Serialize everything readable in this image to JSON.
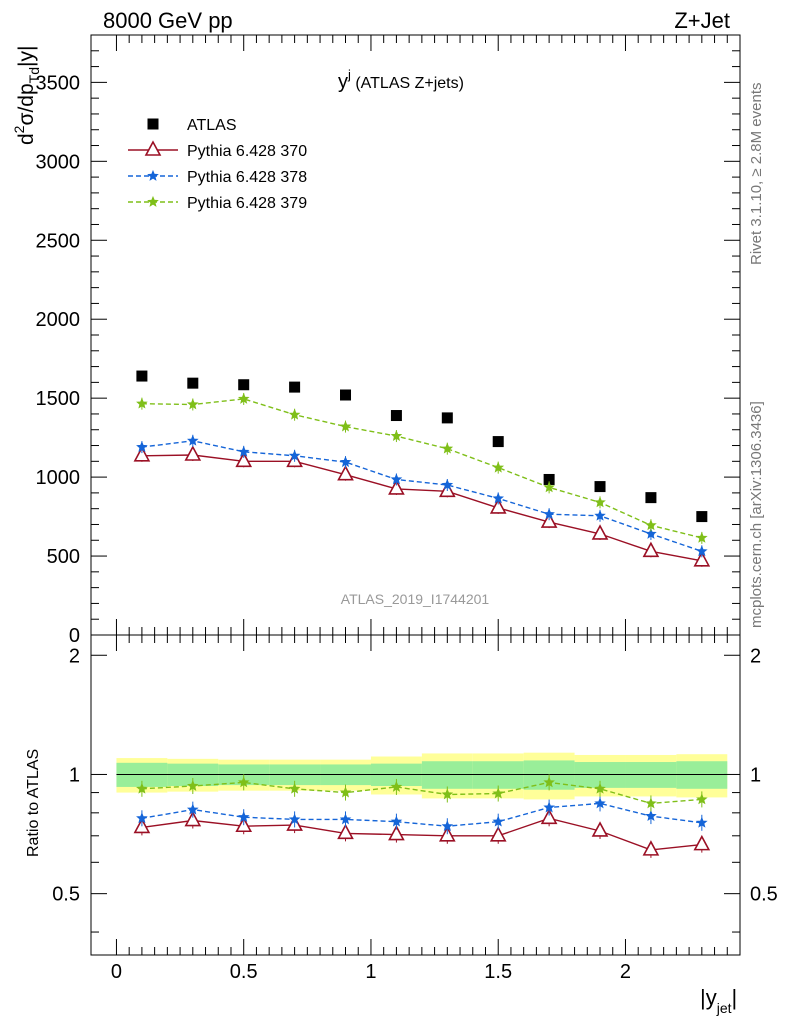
{
  "header": {
    "left": "8000 GeV pp",
    "right": "Z+Jet"
  },
  "side_labels": {
    "rivet": "Rivet 3.1.10, ≥ 2.8M events",
    "mcplots": "mcplots.cern.ch [arXiv:1306.3436]"
  },
  "watermark": "ATLAS_2019_I1744201",
  "chart_data": [
    {
      "type": "scatter",
      "panel": "main",
      "title": "y^j (ATLAS Z+jets)",
      "title_main": "y",
      "title_sup": "j",
      "title_rest": " (ATLAS Z+jets)",
      "ylabel": "d²σ/dp_Td|y|",
      "ylabel_parts": [
        "d",
        "2",
        "σ/dp",
        "Td",
        "|y|"
      ],
      "xlim": [
        -0.1,
        2.45
      ],
      "ylim": [
        0,
        3800
      ],
      "yticks": [
        "0",
        "500",
        "1000",
        "1500",
        "2000",
        "2500",
        "3000",
        "3500"
      ],
      "x": [
        0.1,
        0.3,
        0.5,
        0.7,
        0.9,
        1.1,
        1.3,
        1.5,
        1.7,
        1.9,
        2.1,
        2.3
      ],
      "legend": {
        "placement": "top-left"
      },
      "series": [
        {
          "name": "ATLAS",
          "style": "data",
          "color": "#000000",
          "values": [
            1640,
            1595,
            1585,
            1570,
            1520,
            1390,
            1375,
            1225,
            985,
            940,
            870,
            750
          ]
        },
        {
          "name": "Pythia 6.428 370",
          "style": "triangle-solid",
          "color": "#9b1025",
          "values": [
            1135,
            1140,
            1100,
            1100,
            1015,
            925,
            910,
            805,
            715,
            640,
            530,
            470
          ]
        },
        {
          "name": "Pythia 6.428 378",
          "style": "star-dashed",
          "color": "#1565d8",
          "values": [
            1190,
            1230,
            1160,
            1135,
            1095,
            985,
            950,
            865,
            765,
            755,
            640,
            530
          ]
        },
        {
          "name": "Pythia 6.428 379",
          "style": "star-dashed",
          "color": "#7fbf19",
          "values": [
            1465,
            1460,
            1495,
            1395,
            1320,
            1260,
            1180,
            1060,
            935,
            840,
            695,
            615
          ]
        }
      ]
    },
    {
      "type": "line",
      "panel": "ratio",
      "ylabel": "Ratio to ATLAS",
      "xlabel": "|y_jet|",
      "xlabel_main": "|y",
      "xlabel_sub": "jet",
      "xlabel_end": "|",
      "xlim": [
        -0.1,
        2.45
      ],
      "ylim": [
        0.35,
        2.25
      ],
      "yticks": [
        "0.5",
        "1",
        "2"
      ],
      "xticks": [
        "0",
        "0.5",
        "1",
        "1.5",
        "2"
      ],
      "x": [
        0.1,
        0.3,
        0.5,
        0.7,
        0.9,
        1.1,
        1.3,
        1.5,
        1.7,
        1.9,
        2.1,
        2.3
      ],
      "bins": [
        0,
        0.2,
        0.4,
        0.6,
        0.8,
        1.0,
        1.2,
        1.4,
        1.6,
        1.8,
        2.0,
        2.2,
        2.4
      ],
      "band_stat": [
        0.07,
        0.065,
        0.06,
        0.06,
        0.06,
        0.065,
        0.08,
        0.08,
        0.085,
        0.075,
        0.075,
        0.08
      ],
      "band_total": [
        0.1,
        0.095,
        0.09,
        0.09,
        0.09,
        0.11,
        0.13,
        0.13,
        0.135,
        0.12,
        0.12,
        0.125
      ],
      "series": [
        {
          "name": "Pythia 6.428 370",
          "color": "#9b1025",
          "style": "triangle-solid",
          "values": [
            0.735,
            0.765,
            0.74,
            0.745,
            0.71,
            0.705,
            0.7,
            0.7,
            0.775,
            0.72,
            0.645,
            0.665
          ]
        },
        {
          "name": "Pythia 6.428 378",
          "color": "#1565d8",
          "style": "star-dashed",
          "values": [
            0.775,
            0.815,
            0.78,
            0.77,
            0.77,
            0.76,
            0.74,
            0.76,
            0.825,
            0.845,
            0.785,
            0.755
          ]
        },
        {
          "name": "Pythia 6.428 379",
          "color": "#7fbf19",
          "style": "star-dashed",
          "values": [
            0.92,
            0.935,
            0.955,
            0.92,
            0.9,
            0.93,
            0.89,
            0.895,
            0.955,
            0.92,
            0.845,
            0.865
          ]
        }
      ]
    }
  ]
}
